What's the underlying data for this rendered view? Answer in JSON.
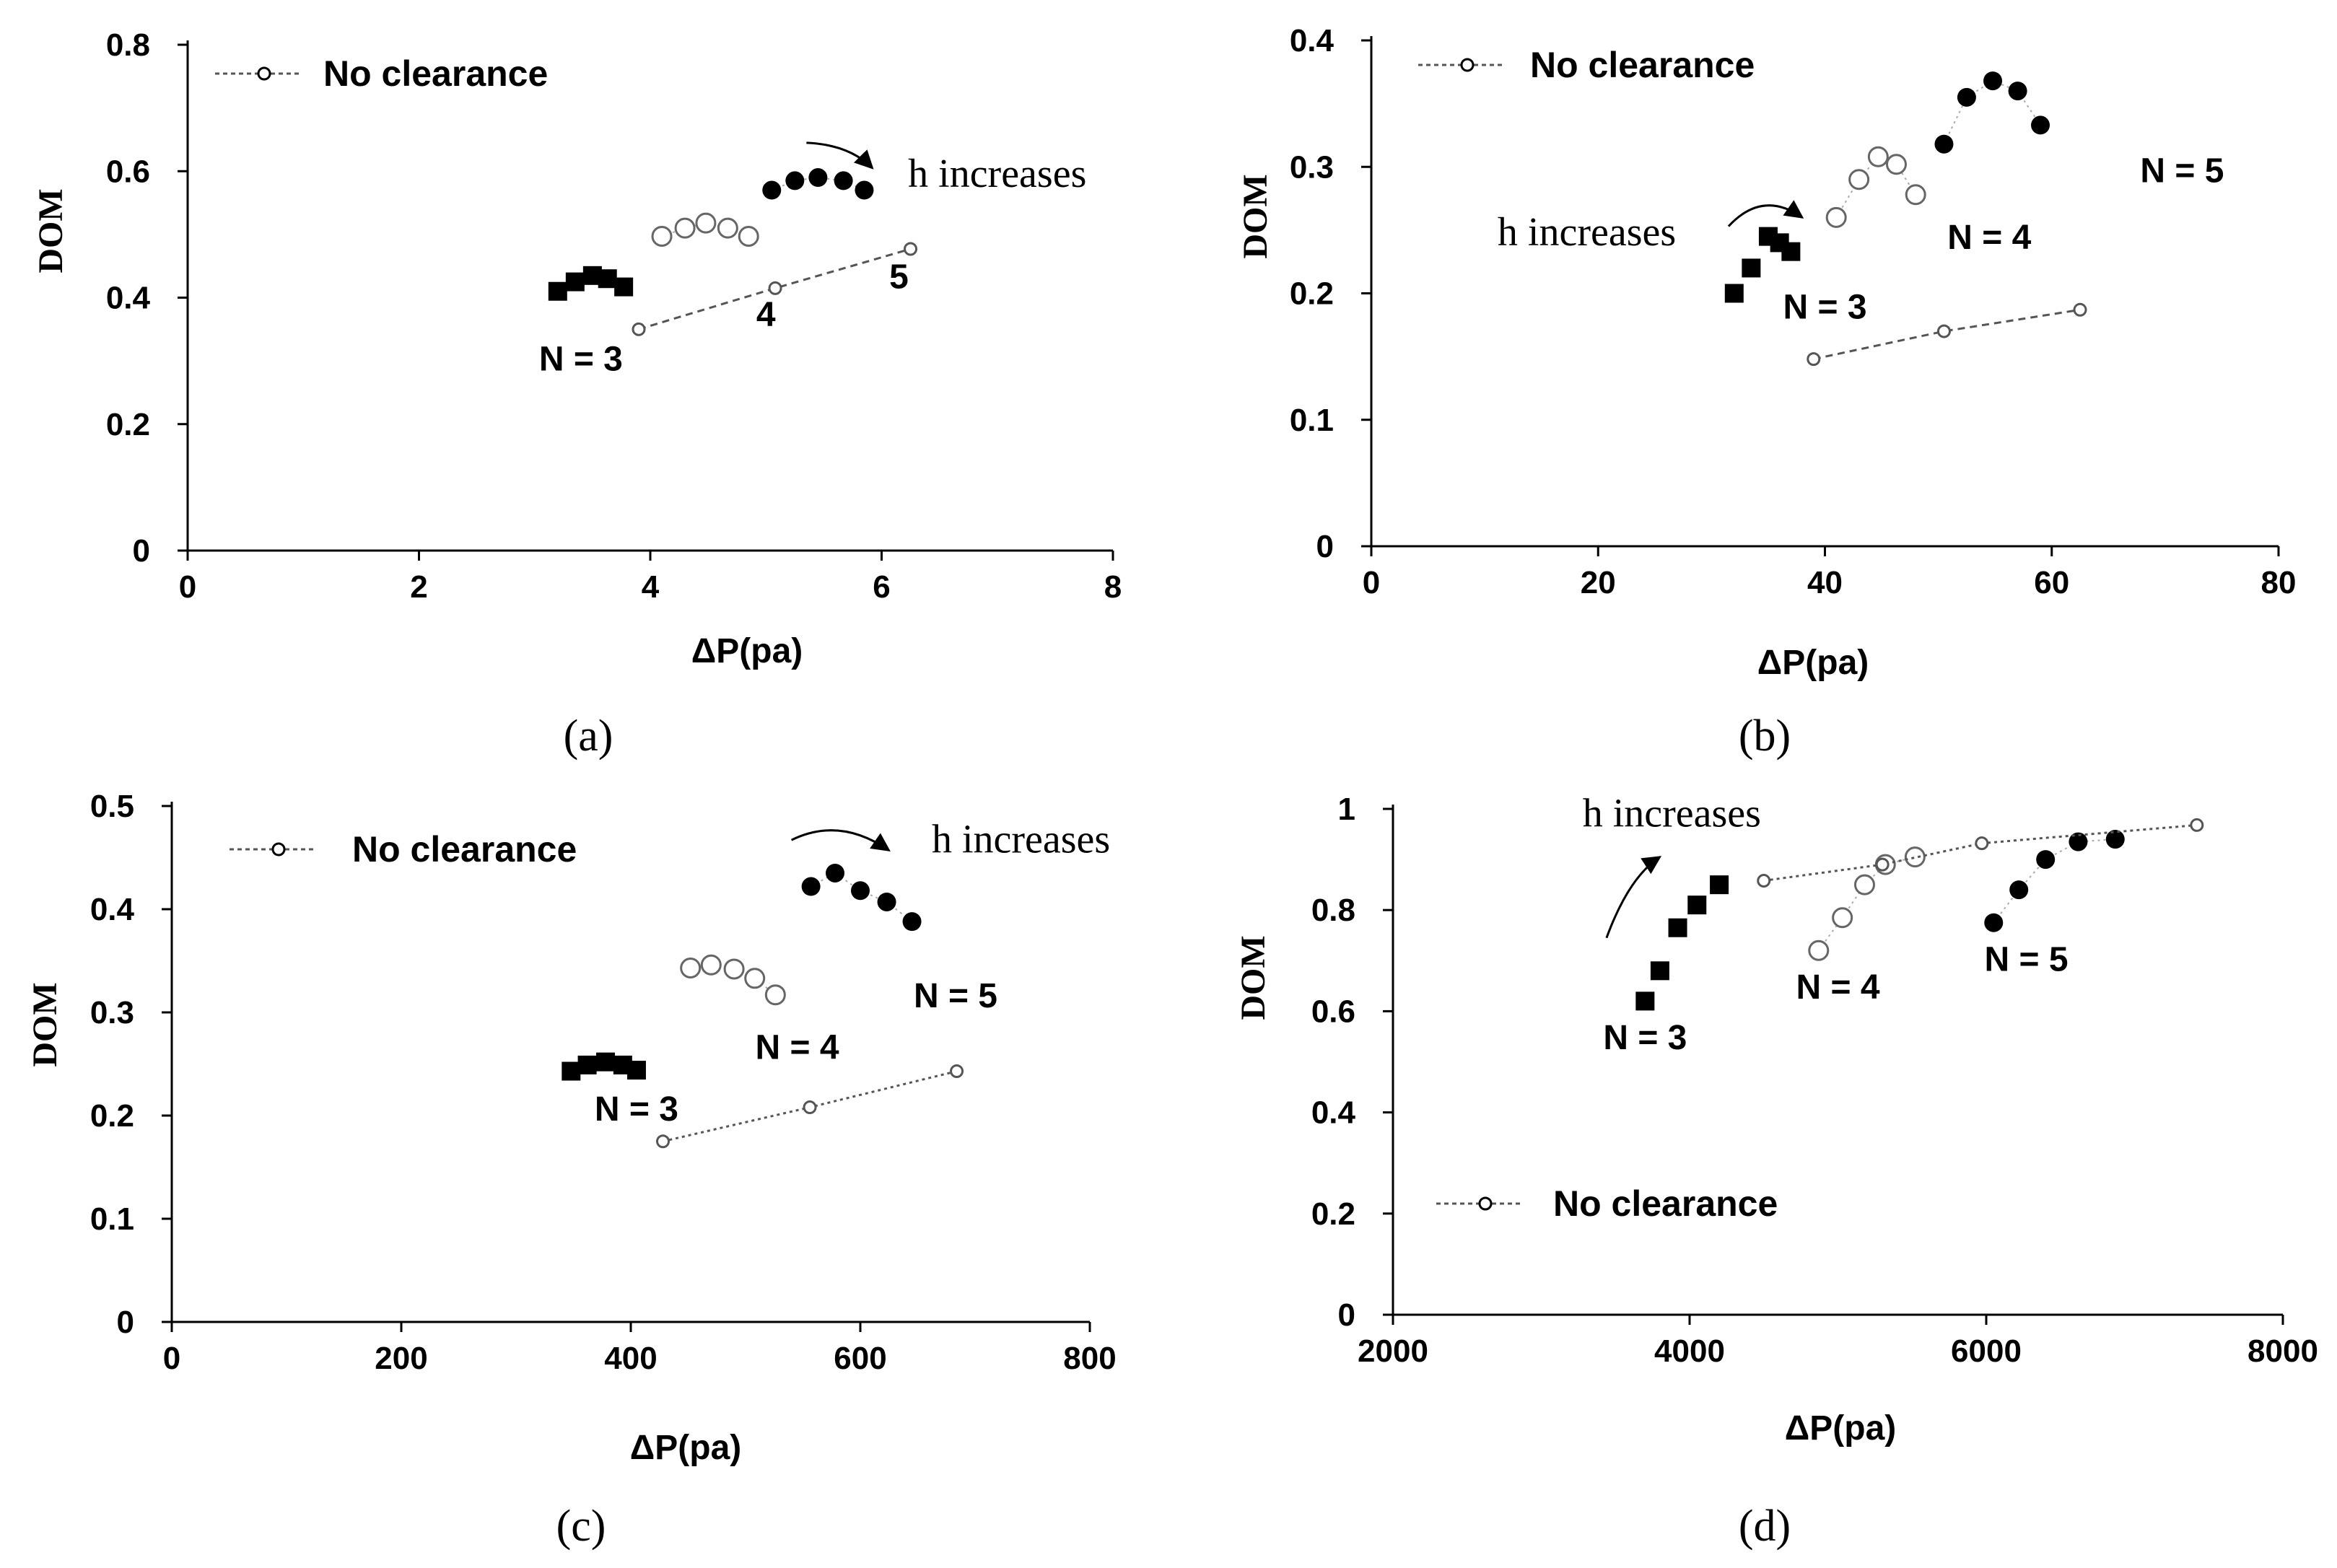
{
  "figure": {
    "captions": [
      "(a)",
      "(b)",
      "(c)",
      "(d)"
    ]
  },
  "chart_data": [
    {
      "type": "scatter",
      "panel": "a",
      "caption": "(a)",
      "xlabel": "ΔP(pa)",
      "ylabel": "DOM",
      "xlim": [
        0,
        8
      ],
      "ylim": [
        0,
        0.8
      ],
      "xticks": [
        0,
        2,
        4,
        6,
        8
      ],
      "yticks": [
        0,
        0.2,
        0.4,
        0.6,
        0.8
      ],
      "xtick_labels": [
        "0",
        "2",
        "4",
        "6",
        "8"
      ],
      "ytick_labels": [
        "0",
        "0.2",
        "0.4",
        "0.6",
        "0.8"
      ],
      "legend": {
        "label": "No clearance",
        "placement": "top-left"
      },
      "series": [
        {
          "name": "N = 3",
          "marker": "filled-square",
          "x": [
            3.2,
            3.35,
            3.5,
            3.63,
            3.77
          ],
          "y": [
            0.41,
            0.425,
            0.435,
            0.43,
            0.417
          ]
        },
        {
          "name": "N = 4",
          "marker": "open-circle",
          "x": [
            4.1,
            4.3,
            4.48,
            4.67,
            4.85
          ],
          "y": [
            0.497,
            0.51,
            0.518,
            0.51,
            0.497
          ]
        },
        {
          "name": "N = 5",
          "marker": "filled-circle",
          "x": [
            5.05,
            5.25,
            5.45,
            5.67,
            5.85
          ],
          "y": [
            0.57,
            0.585,
            0.59,
            0.585,
            0.57
          ]
        },
        {
          "name": "No clearance",
          "marker": "small-open-circle",
          "line": "dashed",
          "x": [
            3.9,
            5.08,
            6.25
          ],
          "y": [
            0.35,
            0.415,
            0.477
          ]
        }
      ],
      "annotations": [
        {
          "text": "N = 3",
          "x": 3.4,
          "y": 0.285
        },
        {
          "text": "4",
          "x": 5.0,
          "y": 0.355
        },
        {
          "text": "5",
          "x": 6.15,
          "y": 0.415
        },
        {
          "text": "h increases",
          "x": 7.0,
          "y": 0.575
        }
      ],
      "arrow": {
        "from": [
          5.35,
          0.645
        ],
        "ctrl": [
          5.72,
          0.642
        ],
        "to": [
          5.92,
          0.605
        ]
      }
    },
    {
      "type": "scatter",
      "panel": "b",
      "caption": "(b)",
      "xlabel": "ΔP(pa)",
      "ylabel": "DOM",
      "xlim": [
        0,
        80
      ],
      "ylim": [
        0,
        0.4
      ],
      "xticks": [
        0,
        20,
        40,
        60,
        80
      ],
      "yticks": [
        0,
        0.1,
        0.2,
        0.3,
        0.4
      ],
      "xtick_labels": [
        "0",
        "20",
        "40",
        "60",
        "80"
      ],
      "ytick_labels": [
        "0",
        "0.1",
        "0.2",
        "0.3",
        "0.4"
      ],
      "legend": {
        "label": "No clearance",
        "placement": "top-left"
      },
      "series": [
        {
          "name": "N = 3",
          "marker": "filled-square",
          "x": [
            32,
            33.5,
            35,
            36,
            37
          ],
          "y": [
            0.2,
            0.22,
            0.245,
            0.24,
            0.233
          ]
        },
        {
          "name": "N = 4",
          "marker": "open-circle",
          "x": [
            41,
            43,
            44.7,
            46.3,
            48
          ],
          "y": [
            0.26,
            0.29,
            0.308,
            0.302,
            0.278
          ]
        },
        {
          "name": "N = 5",
          "marker": "filled-circle",
          "x": [
            50.5,
            52.5,
            54.8,
            57,
            59
          ],
          "y": [
            0.318,
            0.355,
            0.368,
            0.36,
            0.333
          ]
        },
        {
          "name": "No clearance",
          "marker": "small-open-circle",
          "line": "dashed",
          "x": [
            39,
            50.5,
            62.5
          ],
          "y": [
            0.148,
            0.17,
            0.187
          ]
        }
      ],
      "annotations": [
        {
          "text": "h increases",
          "x": 19.0,
          "y": 0.238
        },
        {
          "text": "N = 3",
          "x": 40.0,
          "y": 0.18
        },
        {
          "text": "N = 4",
          "x": 54.5,
          "y": 0.235
        },
        {
          "text": "N = 5",
          "x": 71.5,
          "y": 0.288
        }
      ],
      "arrow": {
        "from": [
          31.5,
          0.253
        ],
        "ctrl": [
          34.5,
          0.282
        ],
        "to": [
          38.0,
          0.26
        ]
      }
    },
    {
      "type": "scatter",
      "panel": "c",
      "caption": "(c)",
      "xlabel": "ΔP(pa)",
      "ylabel": "DOM",
      "xlim": [
        0,
        800
      ],
      "ylim": [
        0,
        0.5
      ],
      "xticks": [
        0,
        200,
        400,
        600,
        800
      ],
      "yticks": [
        0,
        0.1,
        0.2,
        0.3,
        0.4,
        0.5
      ],
      "xtick_labels": [
        "0",
        "200",
        "400",
        "600",
        "800"
      ],
      "ytick_labels": [
        "0",
        "0.1",
        "0.2",
        "0.3",
        "0.4",
        "0.5"
      ],
      "legend": {
        "label": "No clearance",
        "placement": "top-left"
      },
      "series": [
        {
          "name": "N = 3",
          "marker": "filled-square",
          "x": [
            348,
            362,
            378,
            393,
            405
          ],
          "y": [
            0.243,
            0.249,
            0.252,
            0.249,
            0.244
          ]
        },
        {
          "name": "N = 4",
          "marker": "open-circle",
          "x": [
            452,
            470,
            490,
            508,
            526
          ],
          "y": [
            0.343,
            0.346,
            0.342,
            0.333,
            0.317
          ]
        },
        {
          "name": "N = 5",
          "marker": "filled-circle",
          "x": [
            557,
            578,
            600,
            623,
            645
          ],
          "y": [
            0.422,
            0.435,
            0.418,
            0.407,
            0.388
          ]
        },
        {
          "name": "No clearance",
          "marker": "small-open-circle",
          "line": "dotted",
          "x": [
            428,
            556,
            684
          ],
          "y": [
            0.175,
            0.208,
            0.243
          ]
        }
      ],
      "annotations": [
        {
          "text": "N = 3",
          "x": 405,
          "y": 0.195
        },
        {
          "text": "N = 4",
          "x": 545,
          "y": 0.255
        },
        {
          "text": "N = 5",
          "x": 683,
          "y": 0.305
        },
        {
          "text": "h increases",
          "x": 740,
          "y": 0.455
        }
      ],
      "arrow": {
        "from": [
          540,
          0.467
        ],
        "ctrl": [
          582,
          0.49
        ],
        "to": [
          625,
          0.457
        ]
      }
    },
    {
      "type": "scatter",
      "panel": "d",
      "caption": "(d)",
      "xlabel": "ΔP(pa)",
      "ylabel": "DOM",
      "xlim": [
        2000,
        8000
      ],
      "ylim": [
        0,
        1
      ],
      "xticks": [
        2000,
        4000,
        6000,
        8000
      ],
      "yticks": [
        0,
        0.2,
        0.4,
        0.6,
        0.8,
        1
      ],
      "xtick_labels": [
        "2000",
        "4000",
        "6000",
        "8000"
      ],
      "ytick_labels": [
        "0",
        "0.2",
        "0.4",
        "0.6",
        "0.8",
        "1"
      ],
      "legend": {
        "label": "No clearance",
        "placement": "bottom-left"
      },
      "series": [
        {
          "name": "N = 3",
          "marker": "filled-square",
          "x": [
            3700,
            3800,
            3920,
            4050,
            4200
          ],
          "y": [
            0.62,
            0.68,
            0.765,
            0.81,
            0.85
          ]
        },
        {
          "name": "N = 4",
          "marker": "open-circle",
          "x": [
            4870,
            5030,
            5180,
            5320,
            5520
          ],
          "y": [
            0.72,
            0.785,
            0.85,
            0.89,
            0.905
          ]
        },
        {
          "name": "N = 5",
          "marker": "filled-circle",
          "x": [
            6050,
            6220,
            6400,
            6620,
            6870
          ],
          "y": [
            0.775,
            0.84,
            0.9,
            0.935,
            0.94
          ]
        },
        {
          "name": "No clearance",
          "marker": "small-open-circle",
          "line": "dotted",
          "x": [
            4500,
            5300,
            5970,
            7420
          ],
          "y": [
            0.858,
            0.89,
            0.932,
            0.968
          ]
        }
      ],
      "annotations": [
        {
          "text": "h increases",
          "x": 3880,
          "y": 0.965
        },
        {
          "text": "N = 3",
          "x": 3700,
          "y": 0.525
        },
        {
          "text": "N = 4",
          "x": 5000,
          "y": 0.625
        },
        {
          "text": "N = 5",
          "x": 6270,
          "y": 0.68
        }
      ],
      "arrow": {
        "from": [
          3440,
          0.745
        ],
        "ctrl": [
          3590,
          0.865
        ],
        "to": [
          3800,
          0.905
        ]
      }
    }
  ]
}
